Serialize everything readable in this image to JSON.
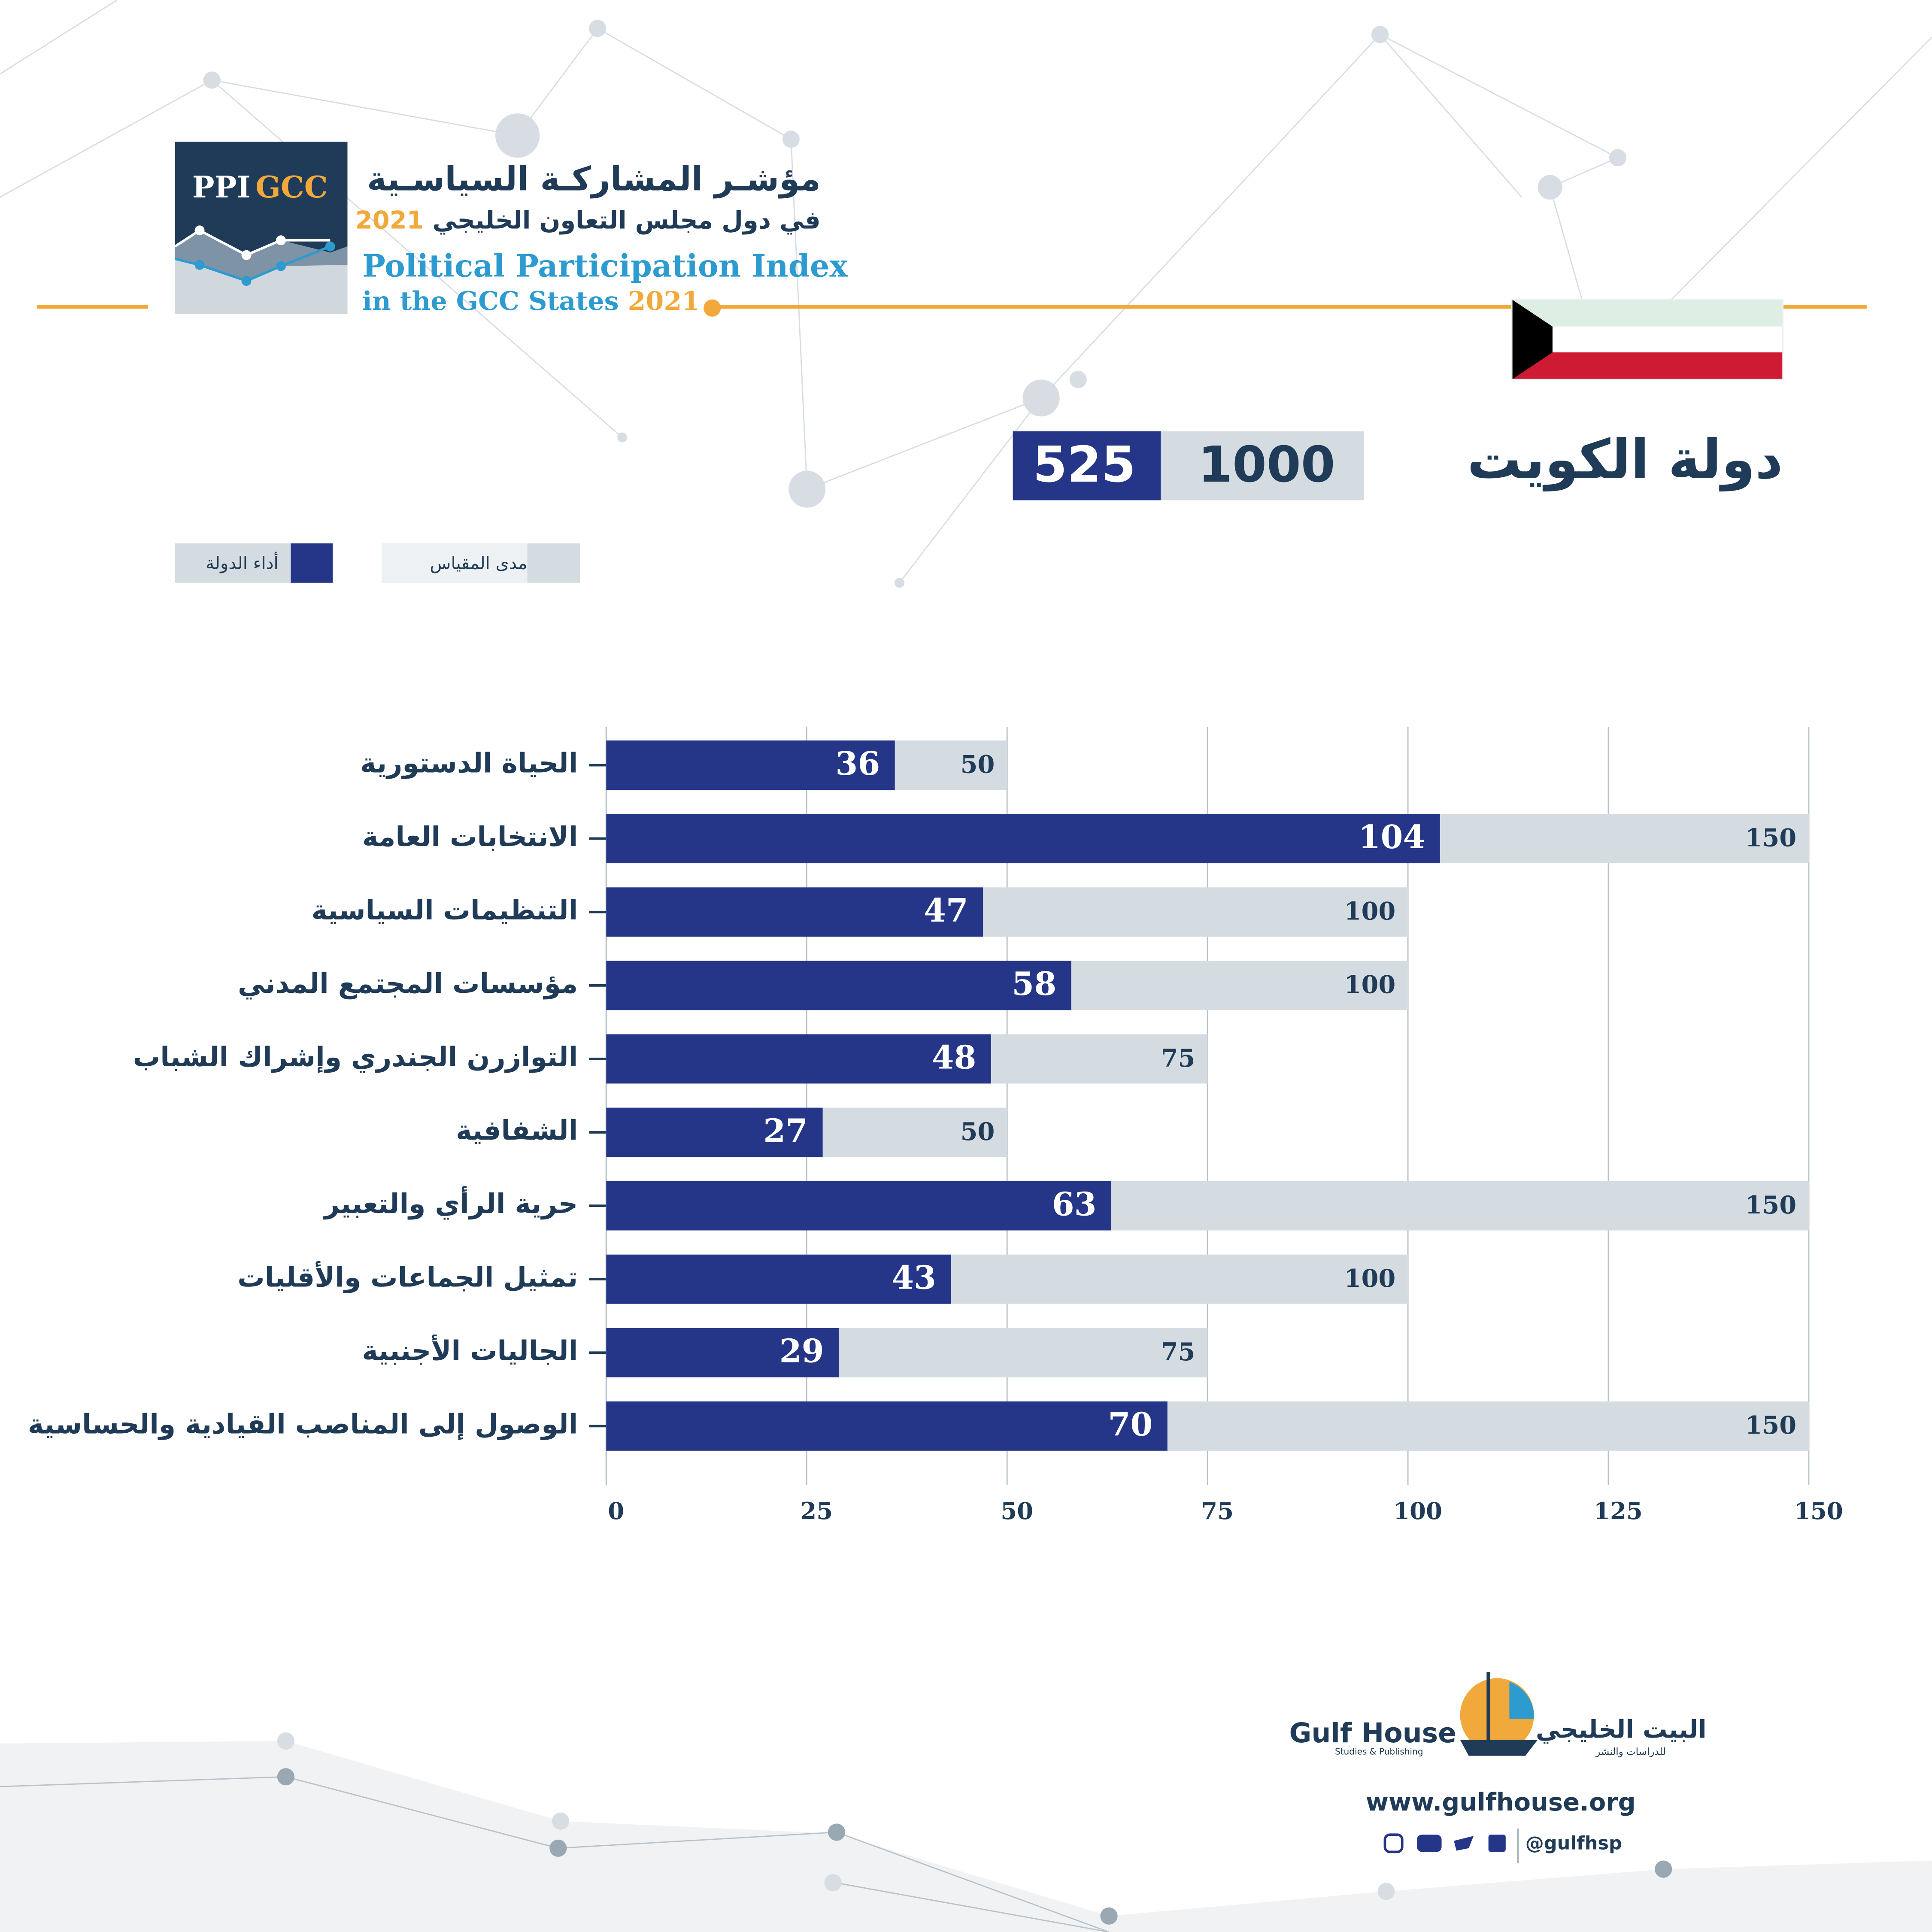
{
  "header": {
    "logo_left": "PPI",
    "logo_right": "GCC",
    "title_ar": "مؤشـر المشاركـة السياسـية",
    "subtitle_ar": "في دول مجلس التعاون الخليجي",
    "year": "2021",
    "title_en": "Political Participation Index",
    "subtitle_en": "in the GCC States"
  },
  "country": {
    "name": "دولة الكويت",
    "max_score": 1000,
    "score": 525
  },
  "chart_data": {
    "type": "bar",
    "orientation": "horizontal",
    "overlap": true,
    "categories": [
      "الحياة الدستورية",
      "الانتخابات العامة",
      "التنظيمات السياسية",
      "مؤسسات المجتمع المدني",
      "التوازرن الجندري وإشراك الشباب",
      "الشفافية",
      "حرية الرأي والتعبير",
      "تمثيل الجماعات والأقليات",
      "الجاليات الأجنبية",
      "الوصول إلى المناصب القيادية والحساسية"
    ],
    "series": [
      {
        "name": "مدى المقياس",
        "color": "#d5dce1",
        "values": [
          50,
          150,
          100,
          100,
          75,
          50,
          150,
          100,
          75,
          150
        ]
      },
      {
        "name": "أداء الدولة",
        "color": "#253688",
        "values": [
          36,
          104,
          47,
          58,
          48,
          27,
          63,
          43,
          29,
          70
        ]
      }
    ],
    "xlim": [
      0,
      150
    ],
    "xticks": [
      0,
      25,
      50,
      75,
      100,
      125,
      150
    ],
    "grid": true
  },
  "footer": {
    "brand_en": "Gulf House",
    "brand_en_sub": "Studies & Publishing",
    "brand_ar": "البيت الخليجي",
    "brand_ar_sub": "للدراسات والنشر",
    "website": "www.gulfhouse.org",
    "handle": "@gulfhsp"
  }
}
